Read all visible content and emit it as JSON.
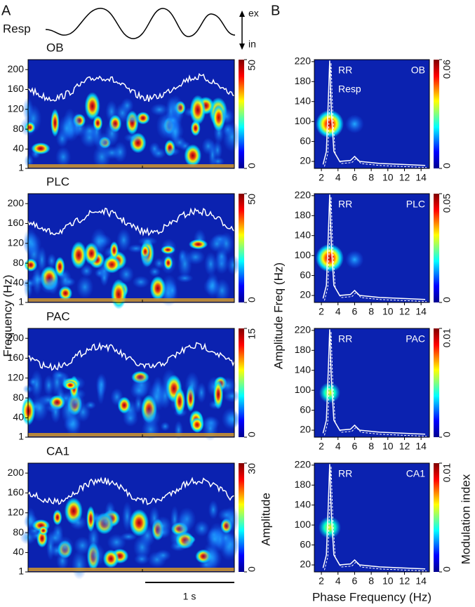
{
  "figure": {
    "panel_labels": [
      "A",
      "B"
    ],
    "resp_label": "Resp",
    "ex_label": "ex",
    "in_label": "in",
    "left_ylabel": "Frequency (Hz)",
    "left_colorbar_label": "Amplitude",
    "scale_bar_label": "1 s",
    "right_ylabel": "Amplitude Freq (Hz)",
    "right_xlabel": "Phase Frequency (Hz)",
    "right_colorbar_label": "Modulation index"
  },
  "chart_data": [
    {
      "type": "heatmap",
      "title": "OB",
      "ylim": [
        1,
        220
      ],
      "yticks": [
        1,
        40,
        80,
        120,
        160,
        200
      ],
      "clim": [
        0,
        50
      ],
      "cticks": [
        0,
        50
      ]
    },
    {
      "type": "heatmap",
      "title": "PLC",
      "ylim": [
        1,
        220
      ],
      "yticks": [
        1,
        40,
        80,
        120,
        160,
        200
      ],
      "clim": [
        0,
        50
      ],
      "cticks": [
        0,
        50
      ]
    },
    {
      "type": "heatmap",
      "title": "PAC",
      "ylim": [
        1,
        220
      ],
      "yticks": [
        1,
        40,
        80,
        120,
        160,
        200
      ],
      "clim": [
        0,
        15
      ],
      "cticks": [
        0,
        15
      ]
    },
    {
      "type": "heatmap",
      "title": "CA1",
      "ylim": [
        1,
        220
      ],
      "yticks": [
        1,
        40,
        80,
        120,
        160,
        200
      ],
      "clim": [
        0,
        30
      ],
      "cticks": [
        0,
        30
      ]
    },
    {
      "type": "comodulogram",
      "title": "OB",
      "annotations": [
        "RR",
        "Resp"
      ],
      "xlim": [
        1.15,
        15
      ],
      "xticks": [
        2,
        4,
        6,
        8,
        10,
        12,
        14
      ],
      "ylim": [
        6,
        224
      ],
      "yticks": [
        20,
        60,
        100,
        140,
        180,
        220
      ],
      "clim": [
        0,
        0.06
      ],
      "cticks": [
        0,
        0.06
      ],
      "hotspots": [
        {
          "x": 3,
          "y": 95,
          "level": 0.06
        },
        {
          "x": 6,
          "y": 95,
          "level": 0.02
        }
      ]
    },
    {
      "type": "comodulogram",
      "title": "PLC",
      "annotations": [
        "RR"
      ],
      "xlim": [
        1.15,
        15
      ],
      "xticks": [
        2,
        4,
        6,
        8,
        10,
        12,
        14
      ],
      "ylim": [
        6,
        224
      ],
      "yticks": [
        20,
        60,
        100,
        140,
        180,
        220
      ],
      "clim": [
        0,
        0.05
      ],
      "cticks": [
        0,
        0.05
      ],
      "hotspots": [
        {
          "x": 3,
          "y": 95,
          "level": 0.05
        },
        {
          "x": 6,
          "y": 92,
          "level": 0.015
        }
      ]
    },
    {
      "type": "comodulogram",
      "title": "PAC",
      "annotations": [
        "RR"
      ],
      "xlim": [
        1.15,
        15
      ],
      "xticks": [
        2,
        4,
        6,
        8,
        10,
        12,
        14
      ],
      "ylim": [
        6,
        224
      ],
      "yticks": [
        20,
        60,
        100,
        140,
        180,
        220
      ],
      "clim": [
        0,
        0.01
      ],
      "cticks": [
        0,
        0.01
      ],
      "hotspots": [
        {
          "x": 3,
          "y": 95,
          "level": 0.005
        }
      ]
    },
    {
      "type": "comodulogram",
      "title": "CA1",
      "annotations": [
        "RR"
      ],
      "xlim": [
        1.15,
        15
      ],
      "xticks": [
        2,
        4,
        6,
        8,
        10,
        12,
        14
      ],
      "ylim": [
        6,
        224
      ],
      "yticks": [
        20,
        60,
        100,
        140,
        180,
        220
      ],
      "clim": [
        0,
        0.01
      ],
      "cticks": [
        0,
        0.01
      ],
      "hotspots": [
        {
          "x": 3,
          "y": 95,
          "level": 0.006
        }
      ]
    }
  ]
}
